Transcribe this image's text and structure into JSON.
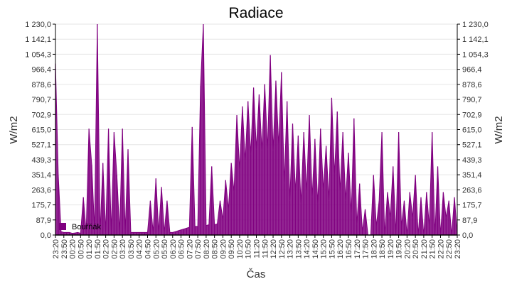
{
  "chart_data": {
    "type": "area",
    "title": "Radiace",
    "xlabel": "Čas",
    "ylabel": "W/m2",
    "ylabel_right": "W/m2",
    "ylim": [
      0,
      1230
    ],
    "grid": true,
    "legend_placement": "bottom-left",
    "colors": {
      "series": "#800080",
      "grid": "#e6e6e6",
      "axis": "#000000"
    },
    "y_ticks": [
      "0,0",
      "87,9",
      "175,7",
      "263,6",
      "351,4",
      "439,3",
      "527,1",
      "615,0",
      "702,9",
      "790,7",
      "878,6",
      "966,4",
      "1 054,3",
      "1 142,1",
      "1 230,0"
    ],
    "x_ticks": [
      "23:20",
      "23:50",
      "00:20",
      "00:50",
      "01:20",
      "01:50",
      "02:20",
      "02:50",
      "03:20",
      "03:50",
      "04:20",
      "04:50",
      "05:20",
      "05:50",
      "06:20",
      "06:50",
      "07:20",
      "07:50",
      "08:20",
      "08:50",
      "09:20",
      "09:50",
      "10:20",
      "10:50",
      "11:20",
      "11:50",
      "12:20",
      "12:50",
      "13:20",
      "13:50",
      "14:20",
      "14:50",
      "15:20",
      "15:50",
      "16:20",
      "16:50",
      "17:20",
      "17:50",
      "18:20",
      "18:50",
      "19:20",
      "19:50",
      "20:20",
      "20:50",
      "21:20",
      "21:50",
      "22:20",
      "22:50",
      "23:20"
    ],
    "x_start": "23:20",
    "x_step_minutes": 10,
    "series": [
      {
        "name": "Bouřňák",
        "values": [
          1000,
          350,
          20,
          15,
          15,
          15,
          10,
          12,
          15,
          10,
          220,
          15,
          620,
          410,
          30,
          1230,
          15,
          420,
          15,
          620,
          15,
          600,
          350,
          15,
          620,
          20,
          500,
          15,
          15,
          15,
          15,
          15,
          15,
          15,
          200,
          15,
          330,
          15,
          280,
          15,
          200,
          15,
          15,
          20,
          25,
          30,
          35,
          40,
          45,
          630,
          50,
          50,
          870,
          1230,
          55,
          60,
          400,
          60,
          65,
          200,
          90,
          320,
          150,
          420,
          250,
          700,
          380,
          750,
          430,
          780,
          470,
          860,
          500,
          820,
          490,
          880,
          500,
          1050,
          490,
          900,
          520,
          950,
          300,
          780,
          200,
          650,
          250,
          580,
          180,
          600,
          250,
          700,
          220,
          560,
          180,
          620,
          260,
          520,
          200,
          800,
          350,
          720,
          250,
          600,
          200,
          480,
          120,
          680,
          60,
          300,
          20,
          150,
          0,
          0,
          350,
          50,
          200,
          600,
          0,
          250,
          100,
          400,
          0,
          600,
          50,
          200,
          0,
          250,
          100,
          350,
          0,
          220,
          0,
          250,
          50,
          600,
          0,
          400,
          0,
          250,
          100,
          200,
          0,
          220,
          0
        ]
      }
    ]
  }
}
